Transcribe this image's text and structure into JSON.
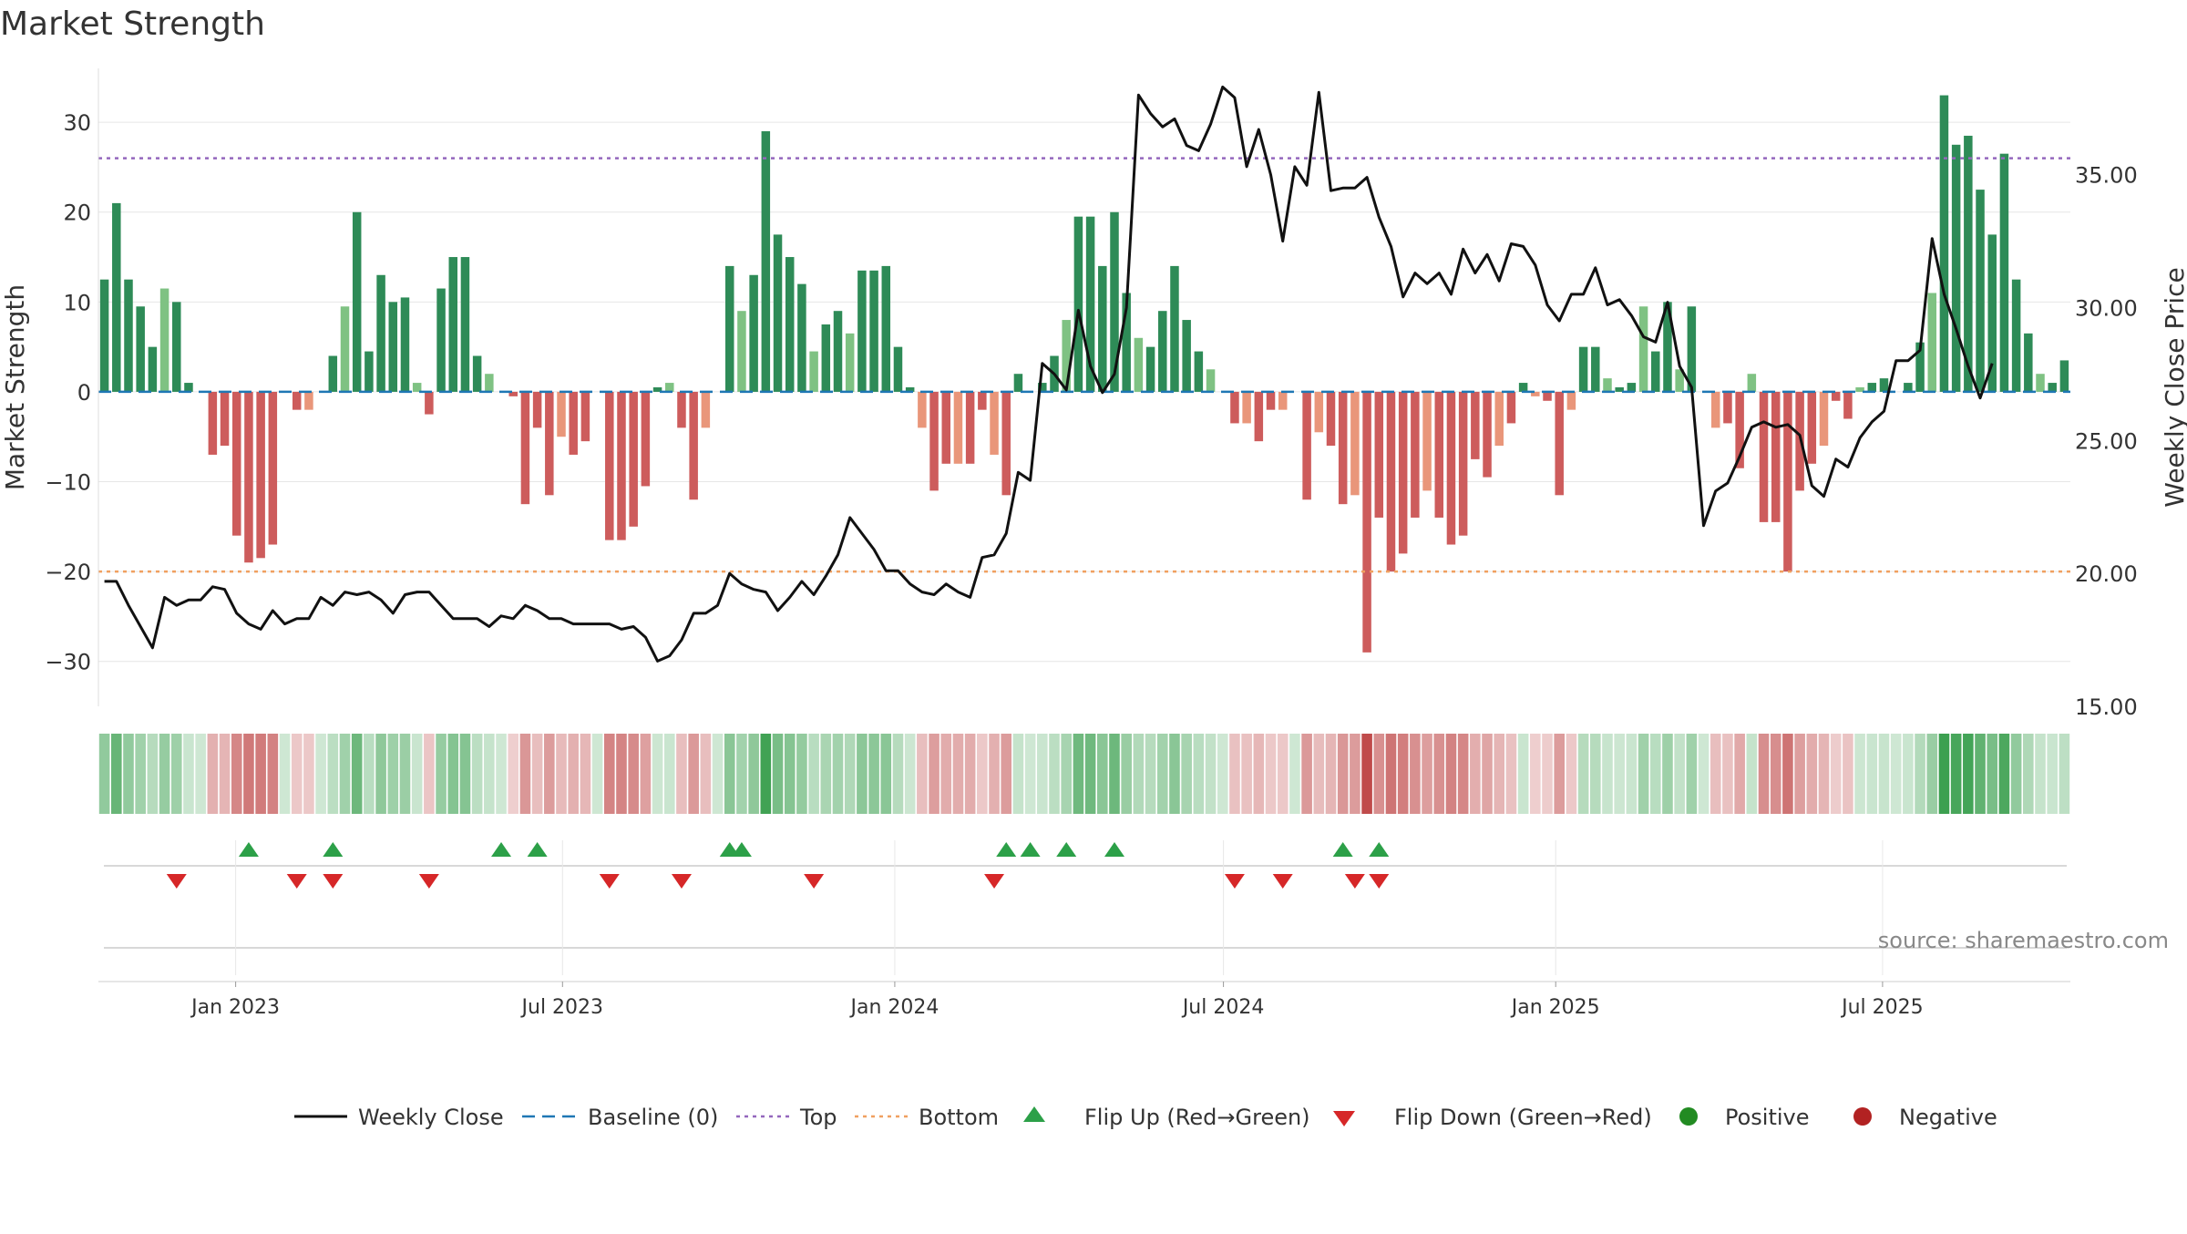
{
  "title": "Market Strength",
  "source": "source: sharemaestro.com",
  "legend": [
    {
      "label": "Weekly Close",
      "kind": "line-solid",
      "color": "#111111"
    },
    {
      "label": "Baseline (0)",
      "kind": "line-dashed",
      "color": "#1f77b4"
    },
    {
      "label": "Top",
      "kind": "line-dotted",
      "color": "#9467bd"
    },
    {
      "label": "Bottom",
      "kind": "line-dotted",
      "color": "#f0a060"
    },
    {
      "label": "Flip Up (Red→Green)",
      "kind": "triangle-up",
      "color": "#2ca048"
    },
    {
      "label": "Flip Down (Green→Red)",
      "kind": "triangle-down",
      "color": "#d62728"
    },
    {
      "label": "Positive",
      "kind": "dot",
      "color": "#228b22"
    },
    {
      "label": "Negative",
      "kind": "dot",
      "color": "#b22222"
    }
  ],
  "colors": {
    "pos_dark": "#2e8b57",
    "pos_light": "#7fc283",
    "neg_dark": "#cd5c5c",
    "neg_light": "#e9967a",
    "top_line": "#9467bd",
    "bottom_line": "#f0a060",
    "baseline": "#1f77b4",
    "price": "#111111",
    "flip_up": "#2ca048",
    "flip_down": "#d62728"
  },
  "chart_data": {
    "type": "bar",
    "ylabel": "Market Strength",
    "y2label": "Weekly Close Price",
    "ylim": [
      -35,
      36
    ],
    "y2lim": [
      15,
      39
    ],
    "yticks": [
      "30",
      "20",
      "10",
      "0",
      "−10",
      "−20",
      "−30"
    ],
    "ytick_values": [
      30,
      20,
      10,
      0,
      -10,
      -20,
      -30
    ],
    "y2ticks": [
      "35.00",
      "30.00",
      "25.00",
      "20.00",
      "15.00"
    ],
    "y2tick_values": [
      35,
      30,
      25,
      20,
      15
    ],
    "x_start": "2022-10-17",
    "x_end": "2025-10-13",
    "xticks": [
      "Jan 2023",
      "Jul 2023",
      "Jan 2024",
      "Jul 2024",
      "Jan 2025",
      "Jul 2025"
    ],
    "xtick_dates": [
      "2023-01-01",
      "2023-07-01",
      "2024-01-01",
      "2024-07-01",
      "2025-01-01",
      "2025-07-01"
    ],
    "top_level": 26,
    "bottom_level": -20,
    "strength": [
      12.5,
      21,
      12.5,
      9.5,
      5,
      11.5,
      10,
      1,
      0,
      -7,
      -6,
      -16,
      -19,
      -18.5,
      -17,
      0,
      -2,
      -2,
      0,
      4,
      9.5,
      20,
      4.5,
      13,
      10,
      10.5,
      1,
      -2.5,
      11.5,
      15,
      15,
      4,
      2,
      0,
      -0.5,
      -12.5,
      -4,
      -11.5,
      -5,
      -7,
      -5.5,
      0,
      -16.5,
      -16.5,
      -15,
      -10.5,
      0.5,
      1,
      -4,
      -12,
      -4,
      0,
      14,
      9,
      13,
      29,
      17.5,
      15,
      12,
      4.5,
      7.5,
      9,
      6.5,
      13.5,
      13.5,
      14,
      5,
      0.5,
      -4,
      -11,
      -8,
      -8,
      -8,
      -2,
      -7,
      -11.5,
      2,
      0,
      1,
      4,
      8,
      19.5,
      19.5,
      14,
      20,
      11,
      6,
      5,
      9,
      14,
      8,
      4.5,
      2.5,
      0,
      -3.5,
      -3.5,
      -5.5,
      -2,
      -2,
      0,
      -12,
      -4.5,
      -6,
      -12.5,
      -11.5,
      -29,
      -14,
      -20,
      -18,
      -14,
      -11,
      -14,
      -17,
      -16,
      -7.5,
      -9.5,
      -6,
      -3.5,
      1,
      -0.5,
      -1,
      -11.5,
      -2,
      5,
      5,
      1.5,
      0.5,
      1,
      9.5,
      4.5,
      10,
      2.5,
      9.5,
      0,
      -4,
      -3.5,
      -8.5,
      2,
      -14.5,
      -14.5,
      -20,
      -11,
      -8,
      -6,
      -1,
      -3,
      0.5,
      1,
      1.5,
      0,
      1,
      5.5,
      11,
      33,
      27.5,
      28.5,
      22.5,
      17.5,
      26.5,
      12.5,
      6.5,
      2,
      1,
      3.5
    ],
    "close": [
      19.7,
      19.7,
      18.8,
      18,
      17.2,
      19.1,
      18.8,
      19,
      19,
      19.5,
      19.4,
      18.5,
      18.1,
      17.9,
      18.6,
      18.1,
      18.3,
      18.3,
      19.1,
      18.8,
      19.3,
      19.2,
      19.3,
      19,
      18.5,
      19.2,
      19.3,
      19.3,
      18.8,
      18.3,
      18.3,
      18.3,
      18,
      18.4,
      18.3,
      18.8,
      18.6,
      18.3,
      18.3,
      18.1,
      18.1,
      18.1,
      18.1,
      17.9,
      18,
      17.6,
      16.7,
      16.9,
      17.5,
      18.5,
      18.5,
      18.8,
      20,
      19.6,
      19.4,
      19.3,
      18.6,
      19.1,
      19.7,
      19.2,
      19.9,
      20.7,
      22.1,
      21.5,
      20.9,
      20.1,
      20.1,
      19.6,
      19.3,
      19.2,
      19.6,
      19.3,
      19.1,
      20.6,
      20.7,
      21.5,
      23.8,
      23.5,
      27.9,
      27.5,
      26.9,
      29.9,
      27.8,
      26.8,
      27.5,
      30,
      38,
      37.3,
      36.8,
      37.1,
      36.1,
      35.9,
      36.9,
      38.3,
      37.9,
      35.3,
      36.7,
      35,
      32.5,
      35.3,
      34.6,
      38.1,
      34.4,
      34.5,
      34.5,
      34.9,
      33.4,
      32.3,
      30.4,
      31.3,
      30.9,
      31.3,
      30.5,
      32.2,
      31.3,
      32,
      31,
      32.4,
      32.3,
      31.6,
      30.1,
      29.5,
      30.5,
      30.5,
      31.5,
      30.1,
      30.3,
      29.7,
      28.9,
      28.7,
      30.2,
      27.8,
      27,
      21.8,
      23.1,
      23.4,
      24.4,
      25.5,
      25.7,
      25.5,
      25.6,
      25.2,
      23.3,
      22.9,
      24.3,
      24,
      25.1,
      25.7,
      26.1,
      28,
      28,
      28.4,
      32.6,
      30.5,
      29.2,
      27.8,
      26.6,
      27.9
    ],
    "flip_up_weeks": [
      12,
      19,
      33,
      36,
      52,
      53,
      75,
      77,
      80,
      84,
      103,
      106
    ],
    "flip_down_weeks": [
      6,
      16,
      19,
      27,
      42,
      48,
      59,
      74,
      94,
      98,
      104,
      106
    ]
  }
}
